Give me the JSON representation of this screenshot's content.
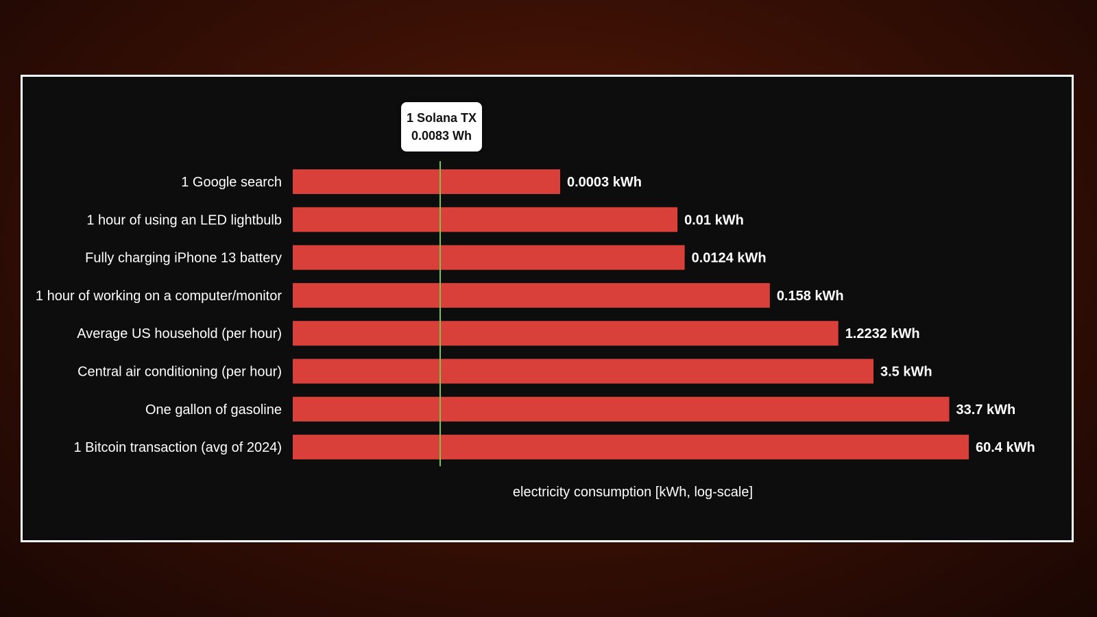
{
  "chart_data": {
    "type": "bar",
    "orientation": "horizontal",
    "xlabel": "electricity consumption [kWh, log-scale]",
    "xscale": "log",
    "categories": [
      "1 Google search",
      "1 hour of using an LED lightbulb",
      "Fully charging iPhone 13 battery",
      "1 hour of working on a computer/monitor",
      "Average US household (per hour)",
      "Central air conditioning (per hour)",
      "One gallon of gasoline",
      "1 Bitcoin transaction (avg of 2024)"
    ],
    "values": [
      0.0003,
      0.01,
      0.0124,
      0.158,
      1.2232,
      3.5,
      33.7,
      60.4
    ],
    "value_labels": [
      "0.0003 kWh",
      "0.01 kWh",
      "0.0124 kWh",
      "0.158 kWh",
      "1.2232 kWh",
      "3.5 kWh",
      "33.7 kWh",
      "60.4 kWh"
    ],
    "reference_line": {
      "value": 8.3e-06,
      "label_line1": "1 Solana TX",
      "label_line2": "0.0083 Wh"
    },
    "colors": {
      "bar": "#d9403a",
      "reference_line": "#7cc44a",
      "background": "#0e0d0d"
    }
  }
}
